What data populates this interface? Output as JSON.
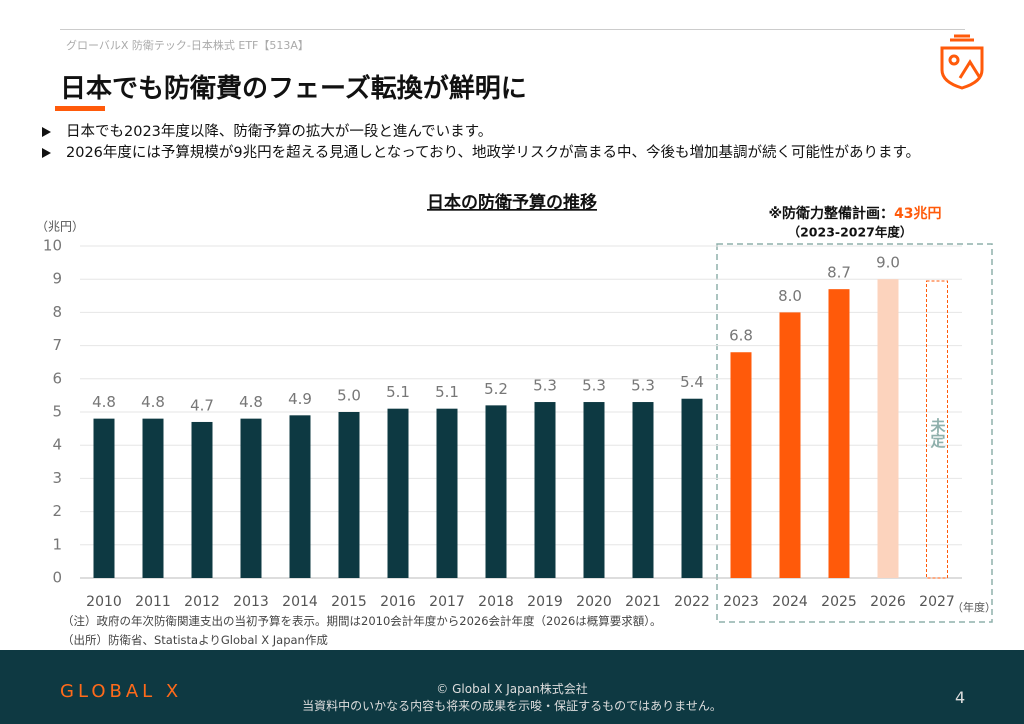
{
  "header": {
    "breadcrumb": "グローバルX 防衛テック-日本株式 ETF【513A】",
    "title": "日本でも防衛費のフェーズ転換が鮮明に"
  },
  "bullets": [
    "日本でも2023年度以降、防衛予算の拡大が一段と進んでいます。",
    "2026年度には予算規模が9兆円を超える見通しとなっており、地政学リスクが高まる中、今後も増加基調が続く可能性があります。"
  ],
  "chart_data": {
    "type": "bar",
    "title": "日本の防衛予算の推移",
    "y_label": "（兆円）",
    "x_label": "（年度）",
    "annotation": {
      "prefix": "※防衛力整備計画：",
      "highlight": "43兆円",
      "period": "（2023-2027年度）"
    },
    "undecided_label": "未定",
    "categories": [
      "2010",
      "2011",
      "2012",
      "2013",
      "2014",
      "2015",
      "2016",
      "2017",
      "2018",
      "2019",
      "2020",
      "2021",
      "2022",
      "2023",
      "2024",
      "2025",
      "2026",
      "2027"
    ],
    "values": [
      4.8,
      4.8,
      4.7,
      4.8,
      4.9,
      5.0,
      5.1,
      5.1,
      5.2,
      5.3,
      5.3,
      5.3,
      5.4,
      6.8,
      8.0,
      8.7,
      9.0,
      null
    ],
    "value_labels": [
      "4.8",
      "4.8",
      "4.7",
      "4.8",
      "4.9",
      "5.0",
      "5.1",
      "5.1",
      "5.2",
      "5.3",
      "5.3",
      "5.3",
      "5.4",
      "6.8",
      "8.0",
      "8.7",
      "9.0",
      null
    ],
    "colors": [
      "#0d3942",
      "#0d3942",
      "#0d3942",
      "#0d3942",
      "#0d3942",
      "#0d3942",
      "#0d3942",
      "#0d3942",
      "#0d3942",
      "#0d3942",
      "#0d3942",
      "#0d3942",
      "#0d3942",
      "#ff5a0a",
      "#ff5a0a",
      "#ff5a0a",
      "#fcd3bd",
      "#ff5a0a"
    ],
    "ylim": [
      0,
      10
    ],
    "yticks": [
      0,
      1,
      2,
      3,
      4,
      5,
      6,
      7,
      8,
      9,
      10
    ],
    "grid": true
  },
  "notes": [
    "（注）政府の年次防衛関連支出の当初予算を表示。期間は2010会計年度から2026会計年度（2026は概算要求額）。",
    "（出所）防衛省、StatistaよりGlobal X Japan作成"
  ],
  "footer": {
    "logo": "GLOBAL X",
    "copyright": "© Global X Japan株式会社",
    "disclaimer": "当資料中のいかなる内容も将来の成果を示唆・保証するものではありません。",
    "page": "4"
  }
}
